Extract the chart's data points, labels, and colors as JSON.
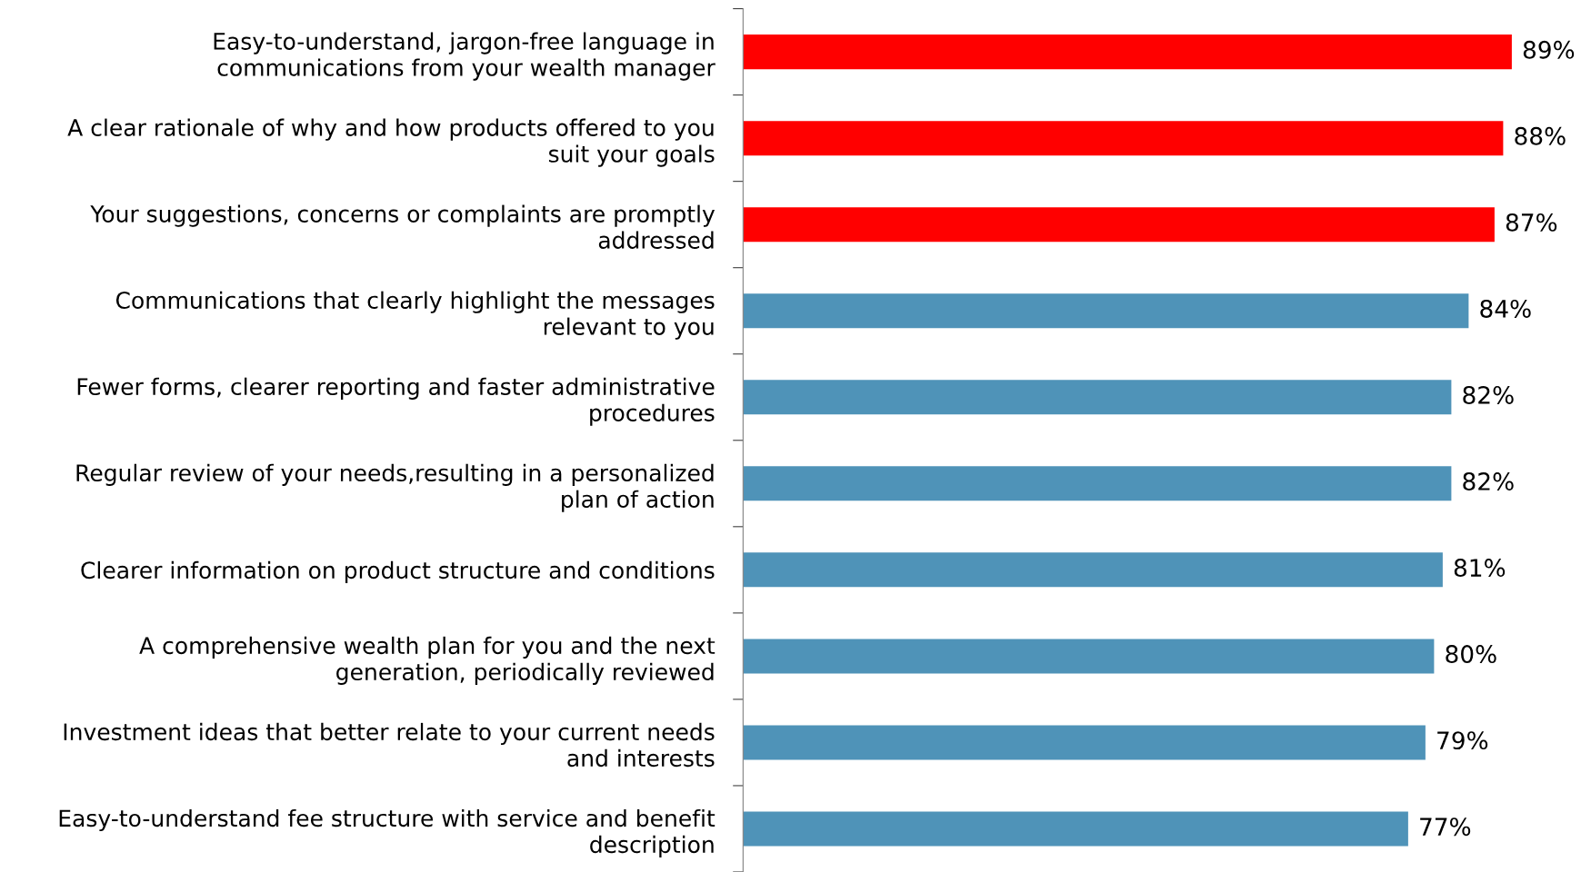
{
  "chart_data": {
    "type": "bar",
    "orientation": "horizontal",
    "categories": [
      "Easy-to-understand, jargon-free language in\ncommunications from your wealth manager",
      "A clear rationale of why and how products offered to you\nsuit your goals",
      "Your suggestions, concerns or complaints are promptly\naddressed",
      "Communications that clearly highlight the messages\nrelevant to you",
      "Fewer forms, clearer reporting and faster administrative\nprocedures",
      "Regular review of your needs,resulting in a personalized\nplan of action",
      "Clearer information on product structure and conditions",
      "A comprehensive wealth plan for you and the next\ngeneration, periodically reviewed",
      "Investment ideas that better relate to your current needs\nand interests",
      "Easy-to-understand fee structure with service and benefit\ndescription"
    ],
    "values": [
      89,
      88,
      87,
      84,
      82,
      82,
      81,
      80,
      79,
      77
    ],
    "value_labels": [
      "89%",
      "88%",
      "87%",
      "84%",
      "82%",
      "82%",
      "81%",
      "80%",
      "79%",
      "77%"
    ],
    "colors": [
      "#ff0000",
      "#ff0000",
      "#ff0000",
      "#4f93b8",
      "#4f93b8",
      "#4f93b8",
      "#4f93b8",
      "#4f93b8",
      "#4f93b8",
      "#4f93b8"
    ],
    "tick_labels": "y",
    "grid": false,
    "legend": false
  }
}
